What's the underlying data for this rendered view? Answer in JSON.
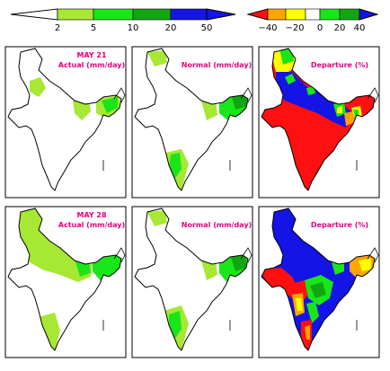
{
  "colors": {
    "light_green": "#a6e833",
    "green": "#19e619",
    "dark_green": "#12a512",
    "blue": "#1414e6",
    "red": "#ff1010",
    "orange": "#ffa500",
    "yellow": "#ffff00",
    "magenta": "#e6007e"
  },
  "legends": {
    "rainfall": {
      "ticks": [
        "2",
        "5",
        "10",
        "20",
        "50"
      ]
    },
    "departure": {
      "ticks": [
        "−40",
        "−20",
        "0",
        "20",
        "40"
      ]
    }
  },
  "rows": [
    {
      "date": "MAY 21",
      "panels": [
        {
          "title": "Actual (mm/day)"
        },
        {
          "title": "Normal (mm/day)"
        },
        {
          "title": "Departure (%)"
        }
      ]
    },
    {
      "date": "MAY 28",
      "panels": [
        {
          "title": "Actual (mm/day)"
        },
        {
          "title": "Normal (mm/day)"
        },
        {
          "title": "Departure (%)"
        }
      ]
    }
  ]
}
